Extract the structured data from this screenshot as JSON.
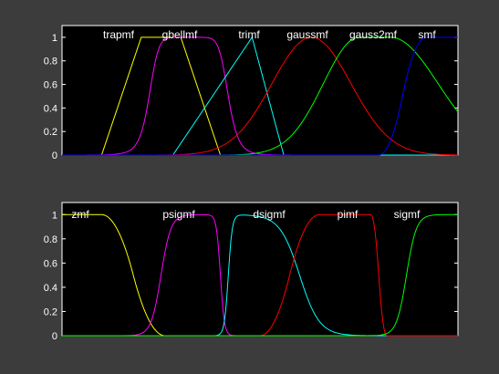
{
  "figure": {
    "background": "#3c3c3c",
    "axes_background": "#000000",
    "axes_color": "#ffffff"
  },
  "chart_data": [
    {
      "type": "line",
      "xlim": [
        0,
        10
      ],
      "ylim": [
        0,
        1.1
      ],
      "yticks": [
        "0",
        "0.2",
        "0.4",
        "0.6",
        "0.8",
        "1"
      ],
      "series": [
        {
          "name": "trapmf",
          "color": "#ffff00",
          "kind": "trapmf",
          "params": [
            1,
            2,
            3,
            4
          ]
        },
        {
          "name": "gbellmf",
          "color": "#ff00ff",
          "kind": "gbellmf",
          "params": [
            1,
            4,
            3.2
          ]
        },
        {
          "name": "trimf",
          "color": "#00ffff",
          "kind": "trimf",
          "params": [
            2.8,
            4.8,
            5.6
          ]
        },
        {
          "name": "gaussmf",
          "color": "#ff0000",
          "kind": "gaussmf",
          "params": [
            1,
            6.3
          ]
        },
        {
          "name": "gauss2mf",
          "color": "#00ff00",
          "kind": "gauss2mf",
          "params": [
            0.9,
            7.5,
            1.2,
            8.3
          ]
        },
        {
          "name": "smf",
          "color": "#0000ff",
          "kind": "smf",
          "params": [
            8,
            9.2
          ]
        }
      ]
    },
    {
      "type": "line",
      "xlim": [
        0,
        10
      ],
      "ylim": [
        0,
        1.1
      ],
      "yticks": [
        "0",
        "0.2",
        "0.4",
        "0.6",
        "0.8",
        "1"
      ],
      "series": [
        {
          "name": "zmf",
          "color": "#ffff00",
          "kind": "zmf",
          "params": [
            1,
            2.6
          ]
        },
        {
          "name": "psigmf",
          "color": "#ff00ff",
          "kind": "psigmf",
          "params": [
            8,
            2.5,
            -20,
            4
          ]
        },
        {
          "name": "dsigmf",
          "color": "#00ffff",
          "kind": "dsigmf",
          "params": [
            20,
            4.2,
            4,
            6
          ]
        },
        {
          "name": "pimf",
          "color": "#ff0000",
          "kind": "pimf",
          "params": [
            5,
            6.5,
            7.8,
            8.2
          ]
        },
        {
          "name": "sigmf",
          "color": "#00ff00",
          "kind": "sigmf",
          "params": [
            8,
            8.7
          ]
        }
      ]
    }
  ]
}
